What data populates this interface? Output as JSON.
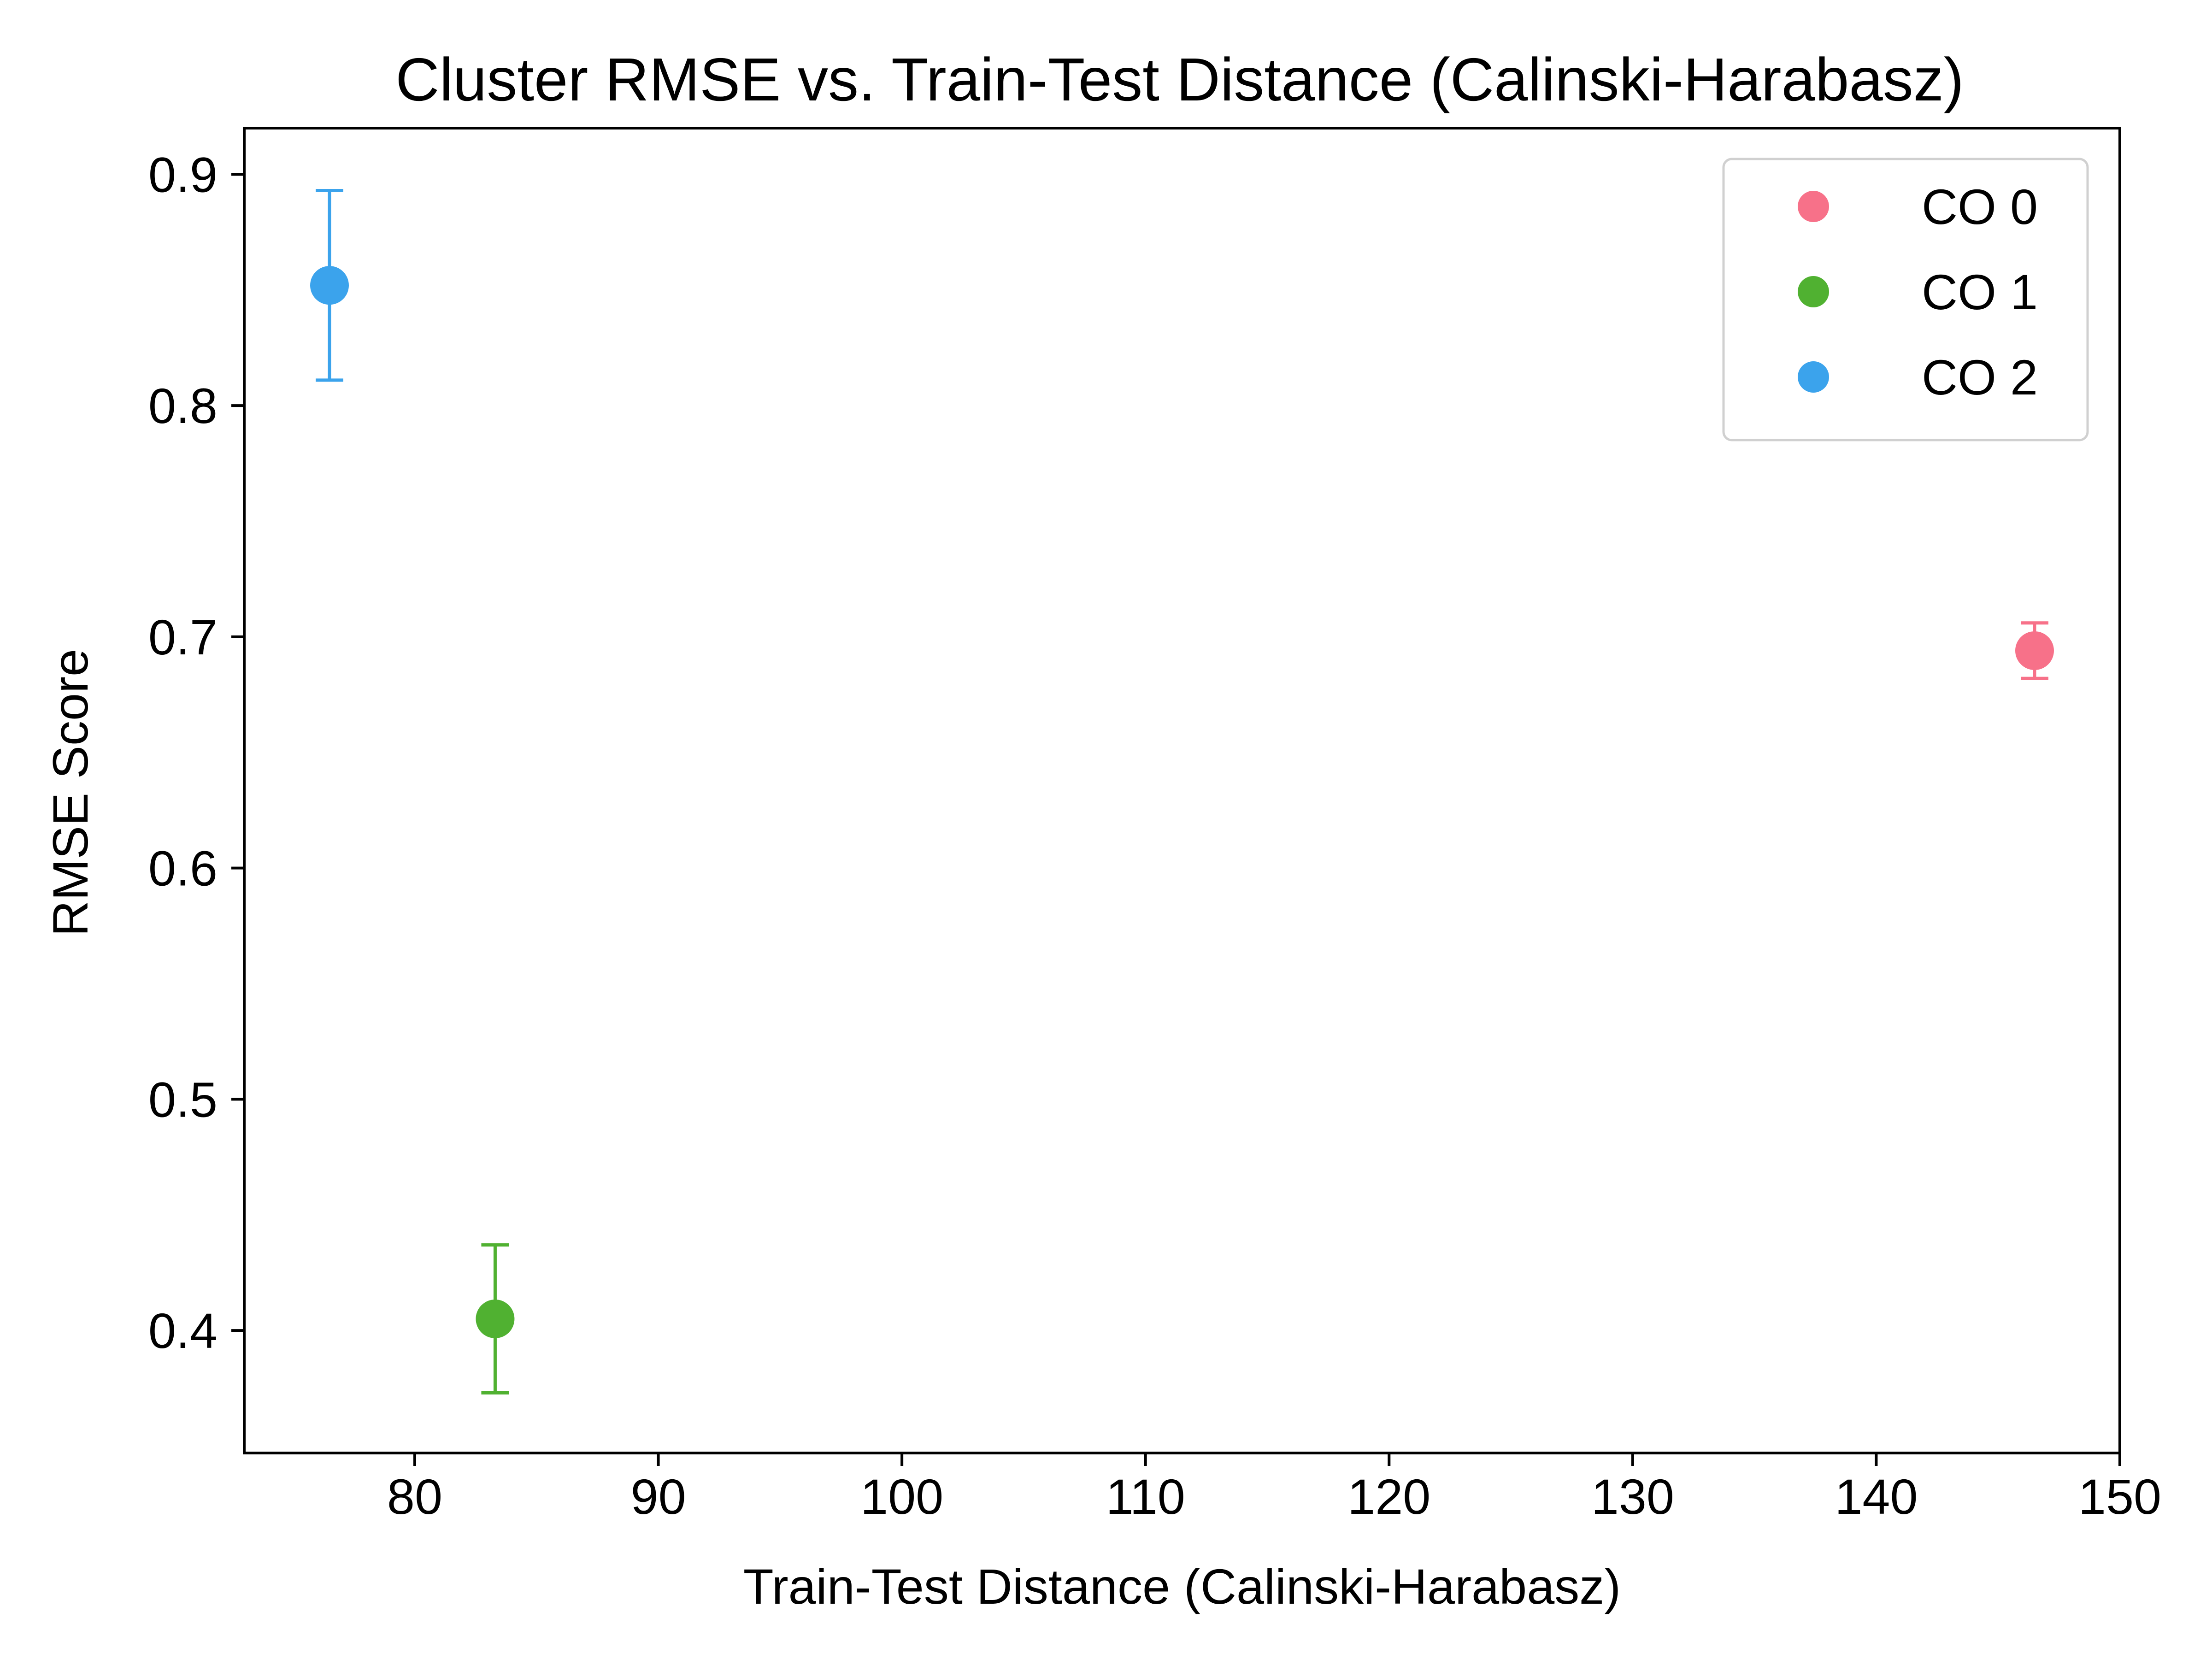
{
  "chart_data": {
    "type": "scatter",
    "title": "Cluster RMSE vs. Train-Test Distance (Calinski-Harabasz)",
    "xlabel": "Train-Test Distance (Calinski-Harabasz)",
    "ylabel": "RMSE Score",
    "xlim": [
      73,
      150
    ],
    "ylim": [
      0.347,
      0.92
    ],
    "xticks": [
      "80",
      "90",
      "100",
      "110",
      "120",
      "130",
      "140",
      "150"
    ],
    "yticks": [
      "0.4",
      "0.5",
      "0.6",
      "0.7",
      "0.8",
      "0.9"
    ],
    "grid": false,
    "legend_position": "top-right",
    "series": [
      {
        "name": "CO 0",
        "color": "#f77189",
        "x": 146.5,
        "y": 0.694,
        "err_low": 0.682,
        "err_high": 0.706
      },
      {
        "name": "CO 1",
        "color": "#50b131",
        "x": 83.3,
        "y": 0.405,
        "err_low": 0.373,
        "err_high": 0.437
      },
      {
        "name": "CO 2",
        "color": "#3ba3ec",
        "x": 76.5,
        "y": 0.852,
        "err_low": 0.811,
        "err_high": 0.893
      }
    ]
  }
}
